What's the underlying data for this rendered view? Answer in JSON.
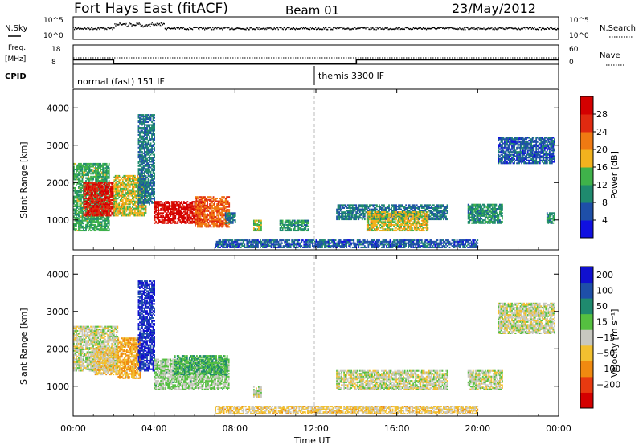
{
  "header": {
    "station": "Fort Hays East (fitACF)",
    "beam": "Beam 01",
    "date": "23/May/2012"
  },
  "noise_panel": {
    "left_label": "N.Sky",
    "right_label": "N.Search",
    "left_ticks": [
      "10^5",
      "10^0"
    ],
    "right_ticks": [
      "10^5",
      "10^0"
    ]
  },
  "freq_panel": {
    "left_label_1": "Freq.",
    "left_label_2": "[MHz]",
    "left_ticks": [
      "18",
      "8"
    ],
    "right_label": "Nave",
    "right_ticks": [
      "60",
      "0"
    ]
  },
  "cpid_panel": {
    "label": "CPID",
    "modes": [
      "normal (fast) 151 IF",
      "themis 3300 IF"
    ]
  },
  "x_axis": {
    "label": "Time UT",
    "ticks": [
      "00:00",
      "04:00",
      "08:00",
      "12:00",
      "16:00",
      "20:00",
      "00:00"
    ]
  },
  "power_panel": {
    "ylabel": "Slant Range [km]",
    "yticks": [
      "1000",
      "2000",
      "3000",
      "4000"
    ],
    "colorbar_label": "Power [dB]",
    "colorbar_ticks": [
      "4",
      "8",
      "12",
      "16",
      "20",
      "24",
      "28"
    ],
    "colors": [
      "#1010e0",
      "#1e4fa8",
      "#1f8a6e",
      "#3fb24a",
      "#f2b21e",
      "#f07a12",
      "#e02a10",
      "#d40000"
    ]
  },
  "velocity_panel": {
    "ylabel": "Slant Range [km]",
    "yticks": [
      "1000",
      "2000",
      "3000",
      "4000"
    ],
    "colorbar_label": "Velocity [m s⁻¹]",
    "colorbar_ticks": [
      "200",
      "100",
      "50",
      "15",
      "−15",
      "−50",
      "−100",
      "−200"
    ],
    "colors": [
      "#1010d0",
      "#1e4fa8",
      "#1f8a6e",
      "#55c040",
      "#c8c8c0",
      "#f2c030",
      "#f08a10",
      "#e83a10",
      "#d40000"
    ]
  },
  "chart_data": [
    {
      "type": "heatmap",
      "title": "Fort Hays East (fitACF) Beam 01 23/May/2012",
      "quantity": "Power [dB]",
      "xlabel": "Time UT",
      "ylabel": "Slant Range [km]",
      "xlim": [
        0,
        24
      ],
      "ylim": [
        200,
        4500
      ],
      "clim": [
        0,
        30
      ],
      "regions": [
        {
          "t0": 0.0,
          "t1": 1.8,
          "r0": 700,
          "r1": 2500,
          "power": 12
        },
        {
          "t0": 0.5,
          "t1": 2.0,
          "r0": 1100,
          "r1": 2000,
          "power": 26
        },
        {
          "t0": 2.0,
          "t1": 3.6,
          "r0": 1100,
          "r1": 2200,
          "power": 16
        },
        {
          "t0": 3.2,
          "t1": 4.0,
          "r0": 1400,
          "r1": 3800,
          "power": 8
        },
        {
          "t0": 4.0,
          "t1": 6.5,
          "r0": 900,
          "r1": 1500,
          "power": 28
        },
        {
          "t0": 6.0,
          "t1": 7.7,
          "r0": 800,
          "r1": 1600,
          "power": 22
        },
        {
          "t0": 7.5,
          "t1": 8.0,
          "r0": 900,
          "r1": 1200,
          "power": 8
        },
        {
          "t0": 8.9,
          "t1": 9.3,
          "r0": 700,
          "r1": 1000,
          "power": 14
        },
        {
          "t0": 10.2,
          "t1": 11.6,
          "r0": 700,
          "r1": 1000,
          "power": 10
        },
        {
          "t0": 13.0,
          "t1": 18.5,
          "r0": 1000,
          "r1": 1400,
          "power": 8
        },
        {
          "t0": 14.5,
          "t1": 17.5,
          "r0": 700,
          "r1": 1200,
          "power": 16
        },
        {
          "t0": 19.5,
          "t1": 21.2,
          "r0": 900,
          "r1": 1400,
          "power": 10
        },
        {
          "t0": 21.0,
          "t1": 23.8,
          "r0": 2500,
          "r1": 3200,
          "power": 6
        },
        {
          "t0": 23.4,
          "t1": 23.8,
          "r0": 900,
          "r1": 1200,
          "power": 10
        },
        {
          "t0": 7.0,
          "t1": 20.0,
          "r0": 250,
          "r1": 450,
          "power": 6
        }
      ]
    },
    {
      "type": "heatmap",
      "title": "Fort Hays East (fitACF) Beam 01 23/May/2012",
      "quantity": "Velocity [m s⁻¹]",
      "xlabel": "Time UT",
      "ylabel": "Slant Range [km]",
      "xlim": [
        0,
        24
      ],
      "ylim": [
        200,
        4500
      ],
      "clim": [
        -250,
        250
      ],
      "regions": [
        {
          "t0": 0.0,
          "t1": 2.2,
          "r0": 1400,
          "r1": 2600,
          "velocity": 0
        },
        {
          "t0": 1.0,
          "t1": 2.2,
          "r0": 1300,
          "r1": 2000,
          "velocity": -40
        },
        {
          "t0": 2.2,
          "t1": 3.3,
          "r0": 1200,
          "r1": 2300,
          "velocity": -80
        },
        {
          "t0": 3.2,
          "t1": 4.0,
          "r0": 1400,
          "r1": 3800,
          "velocity": 200
        },
        {
          "t0": 4.0,
          "t1": 7.7,
          "r0": 900,
          "r1": 1700,
          "velocity": 30
        },
        {
          "t0": 5.0,
          "t1": 7.6,
          "r0": 1300,
          "r1": 1800,
          "velocity": 80
        },
        {
          "t0": 8.9,
          "t1": 9.3,
          "r0": 700,
          "r1": 1000,
          "velocity": 0
        },
        {
          "t0": 13.0,
          "t1": 18.5,
          "r0": 900,
          "r1": 1400,
          "velocity": 0
        },
        {
          "t0": 19.5,
          "t1": 21.2,
          "r0": 900,
          "r1": 1400,
          "velocity": 0
        },
        {
          "t0": 21.0,
          "t1": 23.8,
          "r0": 2400,
          "r1": 3200,
          "velocity": 0
        },
        {
          "t0": 7.0,
          "t1": 20.0,
          "r0": 250,
          "r1": 450,
          "velocity": -40
        }
      ]
    },
    {
      "type": "line",
      "quantity": "Frequency [MHz]",
      "series": [
        {
          "x": [
            0,
            2,
            2,
            14,
            14,
            24
          ],
          "y": [
            12,
            12,
            10,
            10,
            12,
            12
          ]
        }
      ]
    },
    {
      "type": "table",
      "quantity": "CPID",
      "segments": [
        {
          "t0": 0,
          "t1": 12,
          "mode": "normal (fast) 151 IF"
        },
        {
          "t0": 12,
          "t1": 24,
          "mode": "themis 3300 IF"
        }
      ]
    }
  ]
}
